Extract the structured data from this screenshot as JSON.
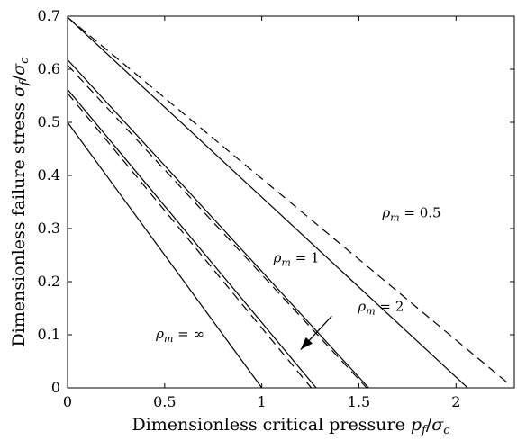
{
  "chart_data": {
    "type": "line",
    "xlabel": {
      "text": "Dimensionless critical pressure ",
      "var": "p",
      "sub": "f",
      "div": "/",
      "var2": "σ",
      "sub2": "c"
    },
    "ylabel": {
      "text": "Dimensionless failure stress ",
      "var": "σ",
      "sub": "f",
      "div": "/",
      "var2": "σ",
      "sub2": "c"
    },
    "xlim": [
      0,
      2.3
    ],
    "ylim": [
      0,
      0.7
    ],
    "xticks": [
      0,
      0.5,
      1,
      1.5,
      2
    ],
    "xtick_labels": [
      "0",
      "0.5",
      "1",
      "1.5",
      "2"
    ],
    "yticks": [
      0,
      0.1,
      0.2,
      0.3,
      0.4,
      0.5,
      0.6,
      0.7
    ],
    "ytick_labels": [
      "0",
      "0.1",
      "0.2",
      "0.3",
      "0.4",
      "0.5",
      "0.6",
      "0.7"
    ],
    "grid": false,
    "series": [
      {
        "style": "solid",
        "x": [
          0,
          1.0
        ],
        "y": [
          0.5,
          0
        ]
      },
      {
        "style": "solid",
        "x": [
          0,
          1.28
        ],
        "y": [
          0.562,
          0
        ]
      },
      {
        "style": "dashed",
        "x": [
          0,
          1.255
        ],
        "y": [
          0.555,
          0
        ]
      },
      {
        "style": "solid",
        "x": [
          0,
          1.55
        ],
        "y": [
          0.618,
          0
        ]
      },
      {
        "style": "dashed",
        "x": [
          0,
          1.54
        ],
        "y": [
          0.608,
          0
        ]
      },
      {
        "style": "solid",
        "x": [
          0,
          2.06
        ],
        "y": [
          0.698,
          0
        ]
      },
      {
        "style": "dashed",
        "x": [
          0,
          2.27
        ],
        "y": [
          0.698,
          0.008
        ]
      }
    ],
    "annotations": [
      {
        "label": "ρ",
        "sub": "m",
        "value": " = ∞",
        "x": 0.455,
        "y": 0.102
      },
      {
        "label": "ρ",
        "sub": "m",
        "value": " = 2",
        "x": 1.495,
        "y": 0.153
      },
      {
        "label": "ρ",
        "sub": "m",
        "value": " = 1",
        "x": 1.06,
        "y": 0.245
      },
      {
        "label": "ρ",
        "sub": "m",
        "value": " = 0.5",
        "x": 1.62,
        "y": 0.33
      }
    ],
    "arrow": {
      "from": [
        1.36,
        0.135
      ],
      "to": [
        1.2,
        0.072
      ]
    }
  }
}
